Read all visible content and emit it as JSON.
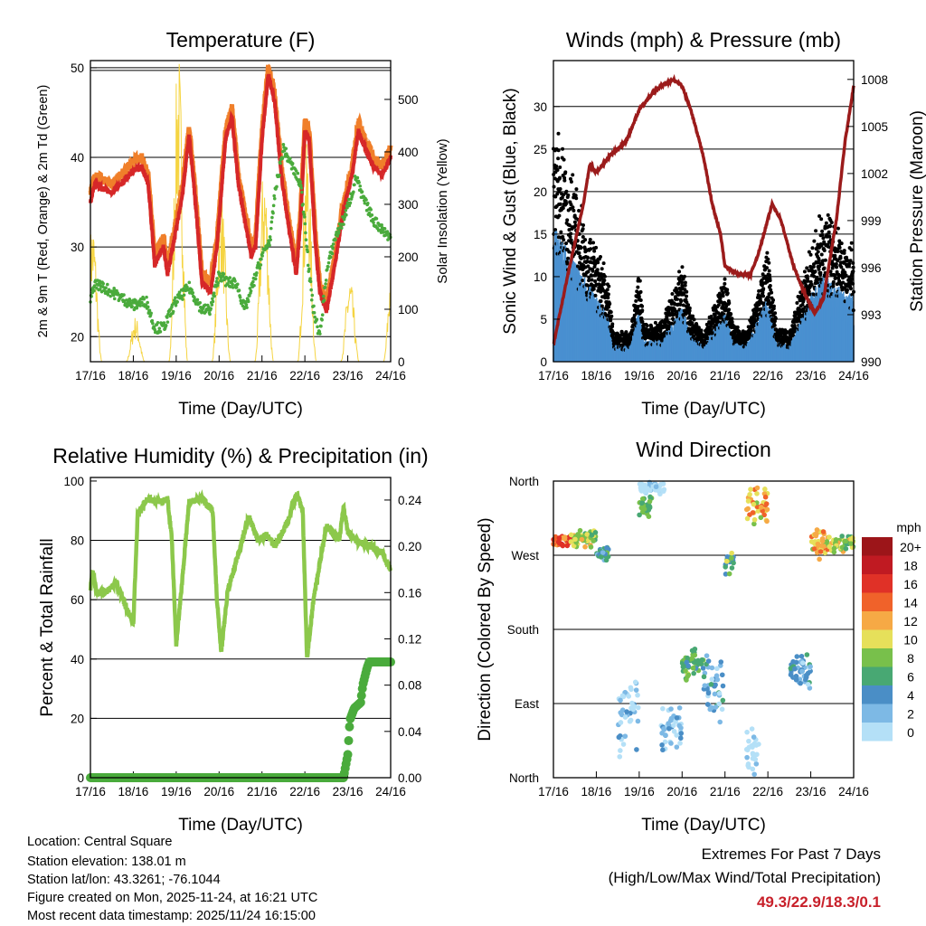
{
  "footer": {
    "location": "Location: Central Square",
    "elevation": "Station elevation: 138.01 m",
    "latlon": "Station lat/lon: 43.3261; -76.1044",
    "created": "Figure created on Mon, 2025-11-24, at 16:21 UTC",
    "recent": "Most recent data timestamp: 2025/11/24 16:15:00",
    "extremes_title": "Extremes For Past 7 Days",
    "extremes_sub": "(High/Low/Max Wind/Total Precipitation)",
    "extremes_values": "49.3/22.9/18.3/0.1",
    "extremes_color": "#c8202a"
  },
  "chart_data": [
    {
      "type": "line",
      "title": "Temperature (F)",
      "xlabel": "Time (Day/UTC)",
      "ylabel": "2m & 9m T (Red, Orange) & 2m Td (Green)",
      "ylabel_right": "Solar Insolation (Yellow)",
      "xticks": [
        "17/16",
        "18/16",
        "19/16",
        "20/16",
        "21/16",
        "22/16",
        "23/16",
        "24/16"
      ],
      "yticks": [
        20,
        30,
        40,
        50
      ],
      "yticks_right": [
        0,
        100,
        200,
        300,
        400,
        500
      ],
      "ylim": [
        17.2,
        50.8
      ],
      "ylim_right": [
        0,
        574
      ],
      "series": [
        {
          "name": "2m T",
          "color": "#d62728",
          "points": [
            [
              0,
              35
            ],
            [
              0.1,
              37
            ],
            [
              0.5,
              36
            ],
            [
              0.8,
              37.5
            ],
            [
              1.0,
              38.5
            ],
            [
              1.2,
              39
            ],
            [
              1.35,
              37
            ],
            [
              1.5,
              28
            ],
            [
              1.7,
              30
            ],
            [
              1.8,
              27
            ],
            [
              2.0,
              32
            ],
            [
              2.15,
              36
            ],
            [
              2.3,
              42.5
            ],
            [
              2.45,
              35
            ],
            [
              2.6,
              26
            ],
            [
              2.8,
              25
            ],
            [
              2.95,
              30
            ],
            [
              3.15,
              42
            ],
            [
              3.3,
              44.5
            ],
            [
              3.45,
              37
            ],
            [
              3.6,
              33
            ],
            [
              3.75,
              29
            ],
            [
              3.85,
              30
            ],
            [
              4.0,
              42
            ],
            [
              4.15,
              49.3
            ],
            [
              4.3,
              46
            ],
            [
              4.45,
              38
            ],
            [
              4.6,
              33
            ],
            [
              4.8,
              27
            ],
            [
              4.9,
              33
            ],
            [
              5.0,
              43
            ],
            [
              5.1,
              42
            ],
            [
              5.25,
              30
            ],
            [
              5.35,
              25
            ],
            [
              5.5,
              22.9
            ],
            [
              5.7,
              28
            ],
            [
              5.9,
              34
            ],
            [
              6.1,
              38
            ],
            [
              6.25,
              43
            ],
            [
              6.4,
              41
            ],
            [
              6.6,
              39
            ],
            [
              6.8,
              38
            ],
            [
              7.0,
              40
            ]
          ]
        },
        {
          "name": "9m T",
          "color": "#f07f2a"
        },
        {
          "name": "2m Td",
          "color": "#4aab3c",
          "points": [
            [
              0,
              24
            ],
            [
              0.1,
              26
            ],
            [
              0.5,
              25
            ],
            [
              1.0,
              23.5
            ],
            [
              1.3,
              24
            ],
            [
              1.5,
              21
            ],
            [
              1.7,
              21
            ],
            [
              2.0,
              24
            ],
            [
              2.3,
              25.5
            ],
            [
              2.6,
              23
            ],
            [
              2.8,
              23
            ],
            [
              3.0,
              27
            ],
            [
              3.2,
              26
            ],
            [
              3.4,
              26
            ],
            [
              3.6,
              23
            ],
            [
              4.0,
              29
            ],
            [
              4.2,
              31
            ],
            [
              4.3,
              36
            ],
            [
              4.5,
              41
            ],
            [
              4.7,
              39
            ],
            [
              4.9,
              37
            ],
            [
              5.0,
              33
            ],
            [
              5.1,
              27
            ],
            [
              5.2,
              23
            ],
            [
              5.35,
              20
            ],
            [
              5.5,
              27
            ],
            [
              5.7,
              31
            ],
            [
              5.9,
              33
            ],
            [
              6.1,
              36
            ],
            [
              6.2,
              38
            ],
            [
              6.3,
              36
            ],
            [
              6.6,
              33
            ],
            [
              6.8,
              32
            ],
            [
              7.0,
              31
            ]
          ]
        },
        {
          "name": "Solar Insolation",
          "color": "#f5d442",
          "daily_peaks": [
            250,
            80,
            550,
            300,
            350,
            380,
            150,
            200
          ]
        }
      ]
    },
    {
      "type": "scatter",
      "title": "Winds (mph) & Pressure (mb)",
      "xlabel": "Time (Day/UTC)",
      "ylabel": "Sonic Wind & Gust (Blue, Black)",
      "ylabel_right": "Station Pressure (Maroon)",
      "xticks": [
        "17/16",
        "18/16",
        "19/16",
        "20/16",
        "21/16",
        "22/16",
        "23/16",
        "24/16"
      ],
      "yticks": [
        0,
        5,
        10,
        15,
        20,
        25,
        30
      ],
      "yticks_right": [
        990,
        993,
        996,
        999,
        1002,
        1005,
        1008
      ],
      "ylim": [
        0,
        35.4
      ],
      "ylim_right": [
        990,
        1009.2
      ],
      "series": [
        {
          "name": "Gust",
          "color": "#000000",
          "envelope": [
            [
              0,
              25
            ],
            [
              0.5,
              18
            ],
            [
              1.0,
              12
            ],
            [
              1.3,
              8
            ],
            [
              1.4,
              3
            ],
            [
              1.8,
              3
            ],
            [
              2.0,
              10
            ],
            [
              2.1,
              4
            ],
            [
              2.5,
              4
            ],
            [
              3.0,
              10
            ],
            [
              3.2,
              5
            ],
            [
              3.5,
              3
            ],
            [
              4.0,
              9
            ],
            [
              4.2,
              4
            ],
            [
              4.5,
              3
            ],
            [
              5.0,
              12
            ],
            [
              5.2,
              4
            ],
            [
              5.5,
              3
            ],
            [
              6.0,
              12
            ],
            [
              6.3,
              16
            ],
            [
              6.6,
              14
            ],
            [
              7,
              12
            ]
          ]
        },
        {
          "name": "Sonic Wind",
          "color": "#4a90d0"
        },
        {
          "name": "Station Pressure",
          "color": "#9b1b1b",
          "points": [
            [
              0,
              991
            ],
            [
              0.3,
              995
            ],
            [
              0.7,
              1000
            ],
            [
              0.85,
              1002.5
            ],
            [
              1.0,
              1002
            ],
            [
              1.3,
              1003
            ],
            [
              1.7,
              1004
            ],
            [
              2.0,
              1006
            ],
            [
              2.3,
              1007
            ],
            [
              2.5,
              1007.5
            ],
            [
              2.8,
              1007.9
            ],
            [
              3.0,
              1007.5
            ],
            [
              3.2,
              1006
            ],
            [
              3.5,
              1003
            ],
            [
              3.7,
              1000
            ],
            [
              3.9,
              998
            ],
            [
              4.0,
              996
            ],
            [
              4.3,
              995.5
            ],
            [
              4.6,
              995.5
            ],
            [
              4.8,
              997
            ],
            [
              5.0,
              999
            ],
            [
              5.1,
              1000
            ],
            [
              5.3,
              999
            ],
            [
              5.6,
              996
            ],
            [
              5.9,
              994
            ],
            [
              6.1,
              993
            ],
            [
              6.3,
              994
            ],
            [
              6.6,
              999
            ],
            [
              6.8,
              1004
            ],
            [
              7.0,
              1007.5
            ]
          ]
        }
      ]
    },
    {
      "type": "line",
      "title": "Relative Humidity (%) & Precipitation (in)",
      "xlabel": "Time (Day/UTC)",
      "ylabel": "Percent & Total Rainfall",
      "xticks": [
        "17/16",
        "18/16",
        "19/16",
        "20/16",
        "21/16",
        "22/16",
        "23/16",
        "24/16"
      ],
      "yticks": [
        0,
        20,
        40,
        60,
        80,
        100
      ],
      "yticks_right": [
        "0.00",
        "0.04",
        "0.08",
        "0.12",
        "0.16",
        "0.20",
        "0.24"
      ],
      "ylim": [
        0,
        101.2
      ],
      "ylim_right": [
        0,
        0.2595
      ],
      "series": [
        {
          "name": "Relative Humidity",
          "color": "#8cc84b",
          "points": [
            [
              0,
              64
            ],
            [
              0.05,
              70
            ],
            [
              0.15,
              62
            ],
            [
              0.4,
              63
            ],
            [
              0.6,
              66
            ],
            [
              0.9,
              55
            ],
            [
              1.0,
              52
            ],
            [
              1.1,
              88
            ],
            [
              1.3,
              94
            ],
            [
              1.6,
              93
            ],
            [
              1.8,
              94
            ],
            [
              1.9,
              80
            ],
            [
              2.0,
              45
            ],
            [
              2.1,
              60
            ],
            [
              2.3,
              93
            ],
            [
              2.6,
              94
            ],
            [
              2.85,
              90
            ],
            [
              2.95,
              60
            ],
            [
              3.05,
              42
            ],
            [
              3.2,
              63
            ],
            [
              3.5,
              78
            ],
            [
              3.7,
              88
            ],
            [
              3.9,
              80
            ],
            [
              4.1,
              82
            ],
            [
              4.3,
              78
            ],
            [
              4.6,
              86
            ],
            [
              4.8,
              96
            ],
            [
              4.95,
              90
            ],
            [
              5.05,
              40
            ],
            [
              5.2,
              60
            ],
            [
              5.5,
              85
            ],
            [
              5.8,
              80
            ],
            [
              5.9,
              91
            ],
            [
              6.0,
              83
            ],
            [
              6.2,
              80
            ],
            [
              6.5,
              78
            ],
            [
              6.8,
              76
            ],
            [
              7.0,
              70
            ]
          ]
        },
        {
          "name": "Total Precipitation",
          "color": "#4aab3c",
          "points": [
            [
              0,
              0
            ],
            [
              5.9,
              0
            ],
            [
              6.0,
              0.02
            ],
            [
              6.05,
              0.05
            ],
            [
              6.15,
              0.06
            ],
            [
              6.3,
              0.065
            ],
            [
              6.35,
              0.08
            ],
            [
              6.45,
              0.095
            ],
            [
              6.5,
              0.1
            ],
            [
              7.0,
              0.1
            ]
          ]
        }
      ]
    },
    {
      "type": "scatter",
      "title": "Wind Direction",
      "xlabel": "Time (Day/UTC)",
      "ylabel": "Direction (Colored By Speed)",
      "xticks": [
        "17/16",
        "18/16",
        "19/16",
        "20/16",
        "21/16",
        "22/16",
        "23/16",
        "24/16"
      ],
      "yticks": [
        "North",
        "East",
        "South",
        "West",
        "North"
      ],
      "ylim": [
        0,
        360
      ],
      "clusters": [
        [
          0,
          0.4,
          287,
          8,
          16
        ],
        [
          0.4,
          1.0,
          290,
          12,
          10
        ],
        [
          1.0,
          1.3,
          272,
          10,
          6
        ],
        [
          2.0,
          2.3,
          330,
          15,
          8
        ],
        [
          2.0,
          2.6,
          352,
          8,
          1
        ],
        [
          1.5,
          2.0,
          80,
          60,
          2
        ],
        [
          2.5,
          3.0,
          60,
          30,
          2
        ],
        [
          3.0,
          3.5,
          140,
          25,
          8
        ],
        [
          3.5,
          4.0,
          110,
          50,
          4
        ],
        [
          4.0,
          4.2,
          262,
          18,
          8
        ],
        [
          4.5,
          4.8,
          40,
          40,
          1
        ],
        [
          4.5,
          5.0,
          330,
          25,
          12
        ],
        [
          5.5,
          6.0,
          130,
          25,
          4
        ],
        [
          6.0,
          6.5,
          285,
          20,
          12
        ],
        [
          6.5,
          7.0,
          285,
          12,
          10
        ]
      ],
      "legend": {
        "title": "mph",
        "labels": [
          "20+",
          "18",
          "16",
          "14",
          "12",
          "10",
          "8",
          "6",
          "4",
          "2",
          "0"
        ],
        "colors": [
          "#9c1519",
          "#c01a22",
          "#e03127",
          "#f0622a",
          "#f6a945",
          "#e6e05a",
          "#78c04b",
          "#48a873",
          "#4a8ec6",
          "#7db9e5",
          "#b4e0f7"
        ]
      }
    }
  ]
}
